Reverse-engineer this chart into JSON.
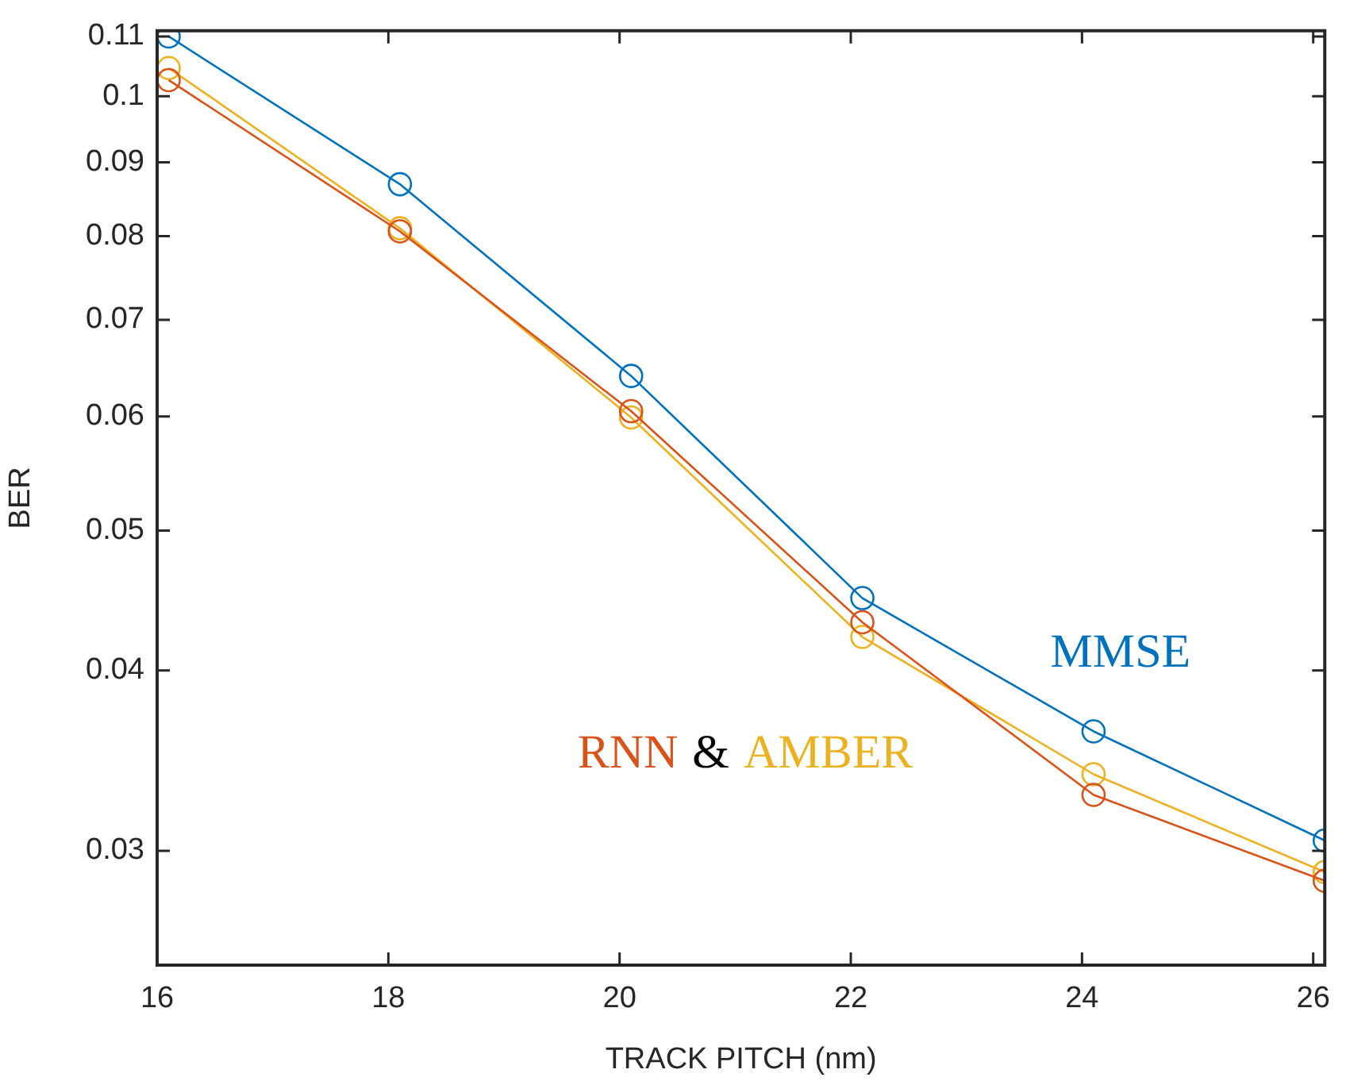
{
  "chart_data": {
    "type": "line",
    "xlabel": "TRACK PITCH (nm)",
    "ylabel": "BER",
    "log": "y",
    "grid": false,
    "legend": false,
    "marker": "circle",
    "line_style": "solid",
    "x": [
      16.1,
      18.1,
      20.1,
      22.1,
      24.1,
      26.1
    ],
    "xlim": [
      16,
      26.1
    ],
    "xticks": [
      16,
      18,
      20,
      22,
      24,
      26
    ],
    "ylim": [
      0.025,
      0.111
    ],
    "yticks": [
      0.03,
      0.04,
      0.05,
      0.06,
      0.07,
      0.08,
      0.09,
      0.1,
      0.11
    ],
    "series": [
      {
        "name": "MMSE",
        "color": "#0072bd",
        "values": [
          0.11,
          0.0869,
          0.064,
          0.0449,
          0.0363,
          0.0305
        ]
      },
      {
        "name": "RNN",
        "color": "#d95319",
        "values": [
          0.1026,
          0.0806,
          0.0605,
          0.0432,
          0.0328,
          0.0286
        ]
      },
      {
        "name": "AMBER",
        "color": "#edb120",
        "values": [
          0.1046,
          0.081,
          0.0599,
          0.0422,
          0.0339,
          0.029
        ]
      }
    ],
    "annotations": [
      "&"
    ]
  }
}
